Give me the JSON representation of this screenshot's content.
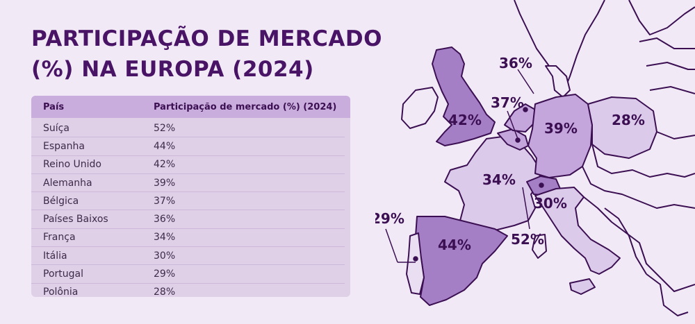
{
  "title": "PARTICIPAÇÃO DE MERCADO (%) NA EUROPA (2024)",
  "table": {
    "headers": [
      "País",
      "Participação de mercado (%) (2024)"
    ],
    "rows": [
      [
        "Suíça",
        "52%"
      ],
      [
        "Espanha",
        "44%"
      ],
      [
        "Reino Unido",
        "42%"
      ],
      [
        "Alemanha",
        "39%"
      ],
      [
        "Bélgica",
        "37%"
      ],
      [
        "Países Baixos",
        "36%"
      ],
      [
        "França",
        "34%"
      ],
      [
        "Itália",
        "30%"
      ],
      [
        "Portugal",
        "29%"
      ],
      [
        "Polônia",
        "28%"
      ]
    ]
  },
  "map": {
    "labels": {
      "uk": "42%",
      "netherlands": "36%",
      "belgium": "37%",
      "germany": "39%",
      "poland": "28%",
      "france": "34%",
      "switzerland": "52%",
      "italy": "30%",
      "spain": "44%",
      "portugal": "29%"
    }
  },
  "colors": {
    "background": "#f1eaf6",
    "title": "#4a1466",
    "table_header": "#c9addc",
    "table_body": "#dfd0e8",
    "shade_dark": "#a57fc6",
    "shade_mid": "#c4a6dc",
    "shade_light": "#dccaea",
    "shade_lightest": "#eadff2",
    "border": "#3b0f52"
  }
}
